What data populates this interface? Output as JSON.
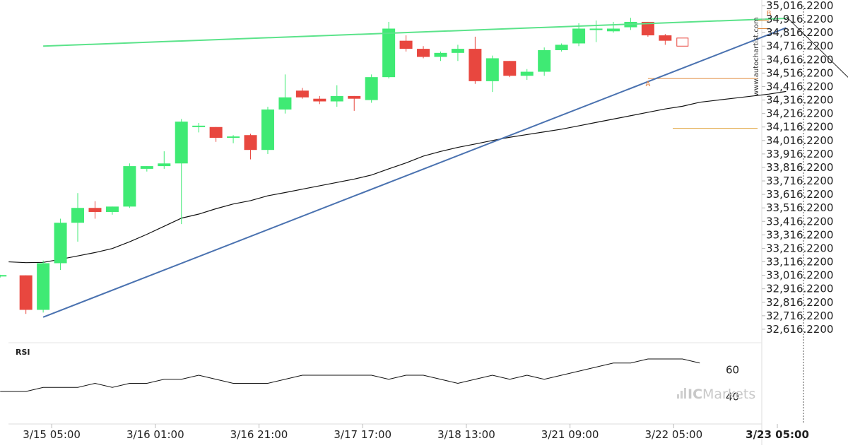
{
  "site_watermark": "www.autochartist.com",
  "brand": {
    "prefix": "IC",
    "name": "Markets"
  },
  "chart_data": {
    "type": "candlestick",
    "price_axis": {
      "range": [
        32516.22,
        35016.22
      ],
      "ticks": [
        35016.22,
        34916.22,
        34816.22,
        34716.22,
        34616.22,
        34516.22,
        34416.22,
        34316.22,
        34216.22,
        34116.22,
        34016.22,
        33916.22,
        33816.22,
        33716.22,
        33616.22,
        33516.22,
        33416.22,
        33316.22,
        33216.22,
        33116.22,
        33016.22,
        32916.22,
        32816.22,
        32716.22,
        32616.22
      ],
      "tick_labels": [
        "35,016.2200",
        "34,916.2200",
        "34,816.2200",
        "34,716.2200",
        "34,616.2200",
        "34,516.2200",
        "34,416.2200",
        "34,316.2200",
        "34,216.2200",
        "34,116.2200",
        "34,016.2200",
        "33,916.2200",
        "33,816.2200",
        "33,716.2200",
        "33,616.2200",
        "33,516.2200",
        "33,416.2200",
        "33,316.2200",
        "33,216.2200",
        "33,116.2200",
        "33,016.2200",
        "32,916.2200",
        "32,816.2200",
        "32,716.2200",
        "32,616.2200"
      ]
    },
    "time_axis": {
      "labels": [
        {
          "index": 2,
          "text": "3/15 05:00",
          "bold": false
        },
        {
          "index": 8,
          "text": "3/16 01:00",
          "bold": false
        },
        {
          "index": 14,
          "text": "3/16 21:00",
          "bold": false
        },
        {
          "index": 20,
          "text": "3/17 17:00",
          "bold": false
        },
        {
          "index": 26,
          "text": "3/18 13:00",
          "bold": false
        },
        {
          "index": 32,
          "text": "3/21 09:00",
          "bold": false
        },
        {
          "index": 38,
          "text": "3/22 05:00",
          "bold": false
        },
        {
          "index": 44,
          "text": "3/23 05:00",
          "bold": true
        }
      ]
    },
    "candles": [
      {
        "o": 33016,
        "h": 33020,
        "l": 33000,
        "c": 33018
      },
      {
        "o": 33016,
        "h": 33016,
        "l": 32730,
        "c": 32760
      },
      {
        "o": 32760,
        "h": 33126,
        "l": 32740,
        "c": 33106
      },
      {
        "o": 33106,
        "h": 33436,
        "l": 33056,
        "c": 33406
      },
      {
        "o": 33406,
        "h": 33626,
        "l": 33266,
        "c": 33516
      },
      {
        "o": 33516,
        "h": 33566,
        "l": 33436,
        "c": 33486
      },
      {
        "o": 33486,
        "h": 33526,
        "l": 33466,
        "c": 33526
      },
      {
        "o": 33526,
        "h": 33846,
        "l": 33516,
        "c": 33826
      },
      {
        "o": 33806,
        "h": 33826,
        "l": 33786,
        "c": 33826
      },
      {
        "o": 33826,
        "h": 33936,
        "l": 33806,
        "c": 33846
      },
      {
        "o": 33846,
        "h": 34176,
        "l": 33396,
        "c": 34156
      },
      {
        "o": 34126,
        "h": 34146,
        "l": 34076,
        "c": 34126
      },
      {
        "o": 34116,
        "h": 34116,
        "l": 34006,
        "c": 34036
      },
      {
        "o": 34036,
        "h": 34056,
        "l": 33996,
        "c": 34046
      },
      {
        "o": 34056,
        "h": 34066,
        "l": 33876,
        "c": 33946
      },
      {
        "o": 33946,
        "h": 34266,
        "l": 33916,
        "c": 34246
      },
      {
        "o": 34246,
        "h": 34506,
        "l": 34216,
        "c": 34336
      },
      {
        "o": 34386,
        "h": 34406,
        "l": 34326,
        "c": 34336
      },
      {
        "o": 34326,
        "h": 34346,
        "l": 34286,
        "c": 34306
      },
      {
        "o": 34306,
        "h": 34426,
        "l": 34266,
        "c": 34346
      },
      {
        "o": 34346,
        "h": 34346,
        "l": 34236,
        "c": 34326
      },
      {
        "o": 34316,
        "h": 34506,
        "l": 34296,
        "c": 34486
      },
      {
        "o": 34486,
        "h": 34896,
        "l": 34476,
        "c": 34846
      },
      {
        "o": 34756,
        "h": 34796,
        "l": 34676,
        "c": 34696
      },
      {
        "o": 34696,
        "h": 34716,
        "l": 34626,
        "c": 34636
      },
      {
        "o": 34636,
        "h": 34676,
        "l": 34606,
        "c": 34666
      },
      {
        "o": 34666,
        "h": 34726,
        "l": 34606,
        "c": 34696
      },
      {
        "o": 34696,
        "h": 34786,
        "l": 34436,
        "c": 34456
      },
      {
        "o": 34456,
        "h": 34646,
        "l": 34376,
        "c": 34626
      },
      {
        "o": 34606,
        "h": 34606,
        "l": 34486,
        "c": 34496
      },
      {
        "o": 34496,
        "h": 34546,
        "l": 34466,
        "c": 34526
      },
      {
        "o": 34526,
        "h": 34706,
        "l": 34496,
        "c": 34686
      },
      {
        "o": 34686,
        "h": 34736,
        "l": 34676,
        "c": 34726
      },
      {
        "o": 34736,
        "h": 34886,
        "l": 34716,
        "c": 34846
      },
      {
        "o": 34846,
        "h": 34906,
        "l": 34746,
        "c": 34846
      },
      {
        "o": 34826,
        "h": 34896,
        "l": 34816,
        "c": 34846
      },
      {
        "o": 34856,
        "h": 34926,
        "l": 34836,
        "c": 34896
      },
      {
        "o": 34896,
        "h": 34896,
        "l": 34786,
        "c": 34796
      },
      {
        "o": 34796,
        "h": 34806,
        "l": 34726,
        "c": 34756
      }
    ],
    "moving_average": {
      "color": "#111111",
      "points": [
        [
          0,
          33116
        ],
        [
          1,
          33110
        ],
        [
          2,
          33112
        ],
        [
          3,
          33135
        ],
        [
          4,
          33160
        ],
        [
          5,
          33185
        ],
        [
          6,
          33215
        ],
        [
          7,
          33265
        ],
        [
          8,
          33320
        ],
        [
          9,
          33380
        ],
        [
          10,
          33440
        ],
        [
          11,
          33470
        ],
        [
          12,
          33510
        ],
        [
          13,
          33545
        ],
        [
          14,
          33570
        ],
        [
          15,
          33606
        ],
        [
          16,
          33630
        ],
        [
          17,
          33655
        ],
        [
          18,
          33680
        ],
        [
          19,
          33705
        ],
        [
          20,
          33730
        ],
        [
          21,
          33760
        ],
        [
          22,
          33806
        ],
        [
          23,
          33850
        ],
        [
          24,
          33900
        ],
        [
          25,
          33935
        ],
        [
          26,
          33965
        ],
        [
          27,
          33990
        ],
        [
          28,
          34016
        ],
        [
          29,
          34040
        ],
        [
          30,
          34060
        ],
        [
          31,
          34080
        ],
        [
          32,
          34100
        ],
        [
          33,
          34125
        ],
        [
          34,
          34150
        ],
        [
          35,
          34175
        ],
        [
          36,
          34200
        ],
        [
          37,
          34225
        ],
        [
          38,
          34250
        ],
        [
          39,
          34270
        ],
        [
          40,
          34300
        ],
        [
          41,
          34315
        ],
        [
          42,
          34330
        ],
        [
          43,
          34345
        ],
        [
          44,
          34360
        ],
        [
          45,
          34380
        ]
      ]
    },
    "pattern": {
      "upper_line": {
        "color": "#5be38a",
        "from": [
          2,
          34716
        ],
        "to": [
          45,
          34922
        ]
      },
      "lower_line": {
        "color": "#4a72b0",
        "from": [
          2,
          32706
        ],
        "to": [
          45,
          34852
        ]
      },
      "point_A": {
        "label": "A",
        "index": 37,
        "price": 34476
      },
      "point_B": {
        "label": "B",
        "index": 44,
        "price": 34922
      },
      "level_A": 34476,
      "level_B_top": 34906,
      "level_B_low": 34846,
      "target_level": 34106,
      "forecast_arrow": {
        "from": [
          46,
          34786
        ],
        "to": [
          50,
          34106
        ]
      },
      "vertical_marker_index": 46
    },
    "rsi": {
      "label": "RSI",
      "ticks": [
        60,
        40
      ],
      "range": [
        20,
        80
      ],
      "values": [
        44,
        44,
        47,
        47,
        47,
        50,
        47,
        50,
        50,
        53,
        53,
        56,
        53,
        50,
        50,
        50,
        53,
        56,
        56,
        56,
        56,
        56,
        53,
        56,
        56,
        53,
        50,
        53,
        56,
        53,
        56,
        53,
        56,
        59,
        62,
        65,
        65,
        68,
        68,
        68,
        65
      ]
    }
  }
}
